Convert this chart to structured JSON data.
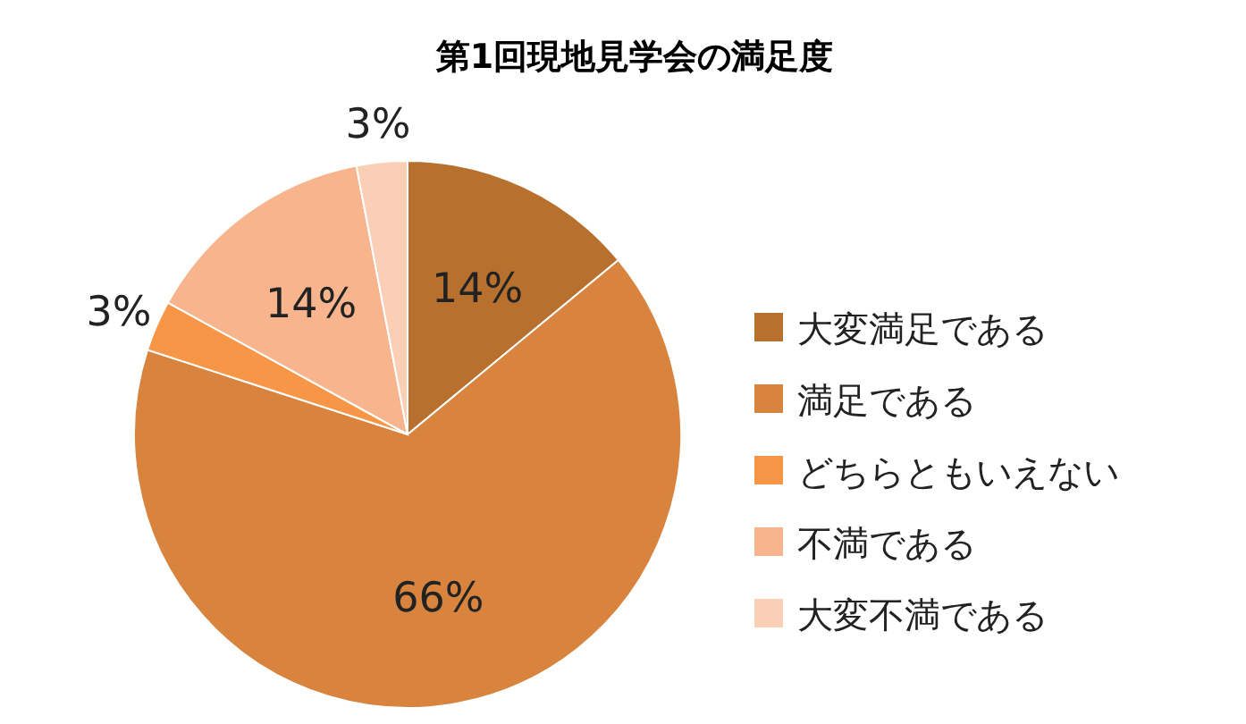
{
  "chart_data": {
    "type": "pie",
    "title": "第1回現地見学会の満足度",
    "categories": [
      "大変満足である",
      "満足である",
      "どちらともいえない",
      "不満である",
      "大変不満である"
    ],
    "values": [
      14,
      66,
      3,
      14,
      3
    ],
    "colors": [
      "#b8702f",
      "#d8843f",
      "#f79646",
      "#f8b48c",
      "#fbcfb6"
    ],
    "value_labels": [
      "14%",
      "66%",
      "3%",
      "14%",
      "3%"
    ],
    "legend": "right"
  }
}
